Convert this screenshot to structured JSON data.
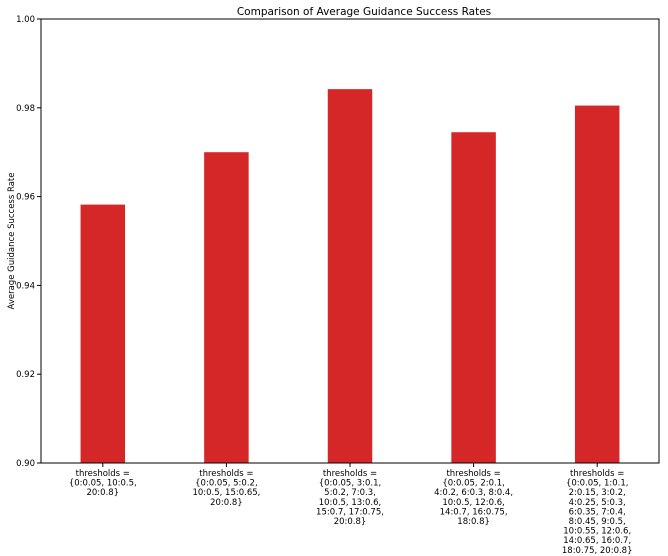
{
  "chart_data": {
    "type": "bar",
    "title": "Comparison of Average Guidance Success Rates",
    "xlabel": "",
    "ylabel": "Average Guidance Success Rate",
    "ylim": [
      0.9,
      1.0
    ],
    "yticks": [
      "0.90",
      "0.92",
      "0.94",
      "0.96",
      "0.98",
      "1.00"
    ],
    "grid": false,
    "bar_color": "#d62728",
    "categories": [
      [
        "thresholds =",
        "{0:0.05, 10:0.5,",
        "20:0.8}"
      ],
      [
        "thresholds =",
        "{0:0.05, 5:0.2,",
        "10:0.5, 15:0.65,",
        "20:0.8}"
      ],
      [
        "thresholds =",
        "{0:0.05, 3:0.1,",
        "5:0.2, 7:0.3,",
        "10:0.5, 13:0.6,",
        "15:0.7, 17:0.75,",
        "20:0.8}"
      ],
      [
        "thresholds =",
        "{0:0.05, 2:0.1,",
        "4:0.2, 6:0.3, 8:0.4,",
        "10:0.5, 12:0.6,",
        "14:0.7, 16:0.75,",
        "18:0.8}"
      ],
      [
        "thresholds =",
        "{0:0.05, 1:0.1,",
        "2:0.15, 3:0.2,",
        "4:0.25, 5:0.3,",
        "6:0.35, 7:0.4,",
        "8:0.45, 9:0.5,",
        "10:0.55, 12:0.6,",
        "14:0.65, 16:0.7,",
        "18:0.75, 20:0.8}"
      ]
    ],
    "values": [
      0.9582,
      0.97,
      0.9842,
      0.9745,
      0.9805
    ]
  }
}
